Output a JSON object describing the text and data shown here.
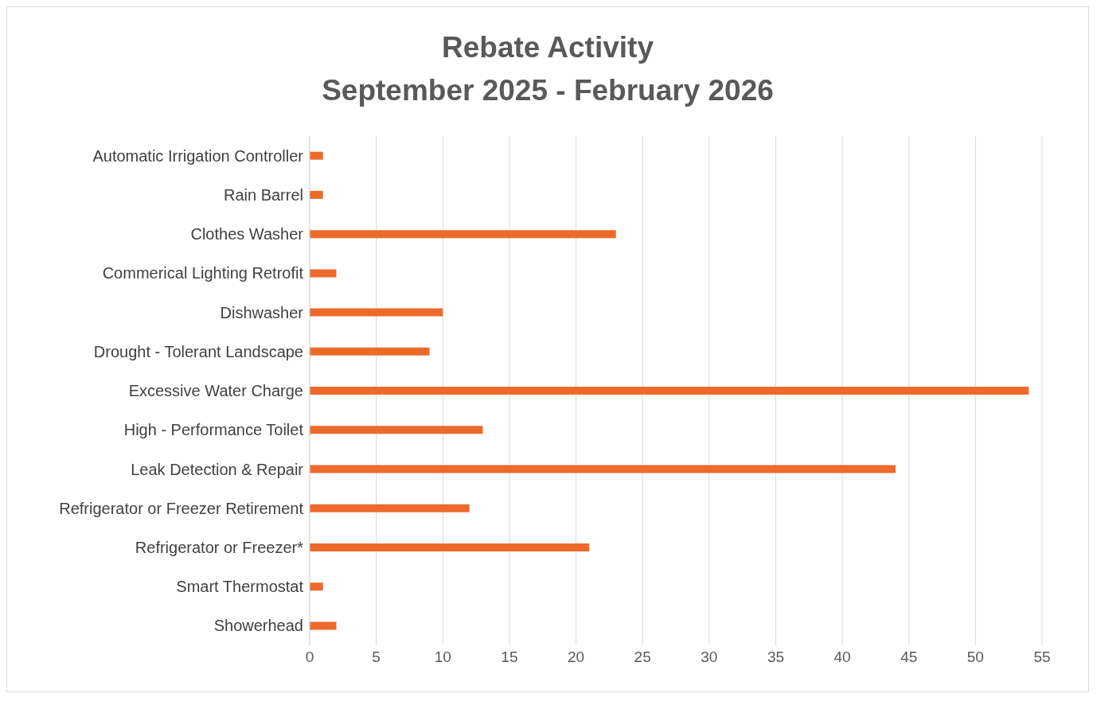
{
  "chart_data": {
    "type": "bar",
    "title": "Rebate Activity",
    "subtitle": "September 2025 - February 2026",
    "orientation": "horizontal",
    "categories": [
      "Automatic Irrigation Controller",
      "Rain Barrel",
      "Clothes Washer",
      "Commerical Lighting Retrofit",
      "Dishwasher",
      "Drought - Tolerant Landscape",
      "Excessive Water Charge",
      "High - Performance Toilet",
      "Leak Detection & Repair",
      "Refrigerator or Freezer Retirement",
      "Refrigerator or Freezer*",
      "Smart Thermostat",
      "Showerhead"
    ],
    "values": [
      1,
      1,
      23,
      2,
      10,
      9,
      54,
      13,
      44,
      12,
      21,
      1,
      2
    ],
    "color": "#ee6a2a",
    "xlim": [
      0,
      55
    ],
    "xticks": [
      0,
      5,
      10,
      15,
      20,
      25,
      30,
      35,
      40,
      45,
      50,
      55
    ],
    "grid": "x"
  }
}
